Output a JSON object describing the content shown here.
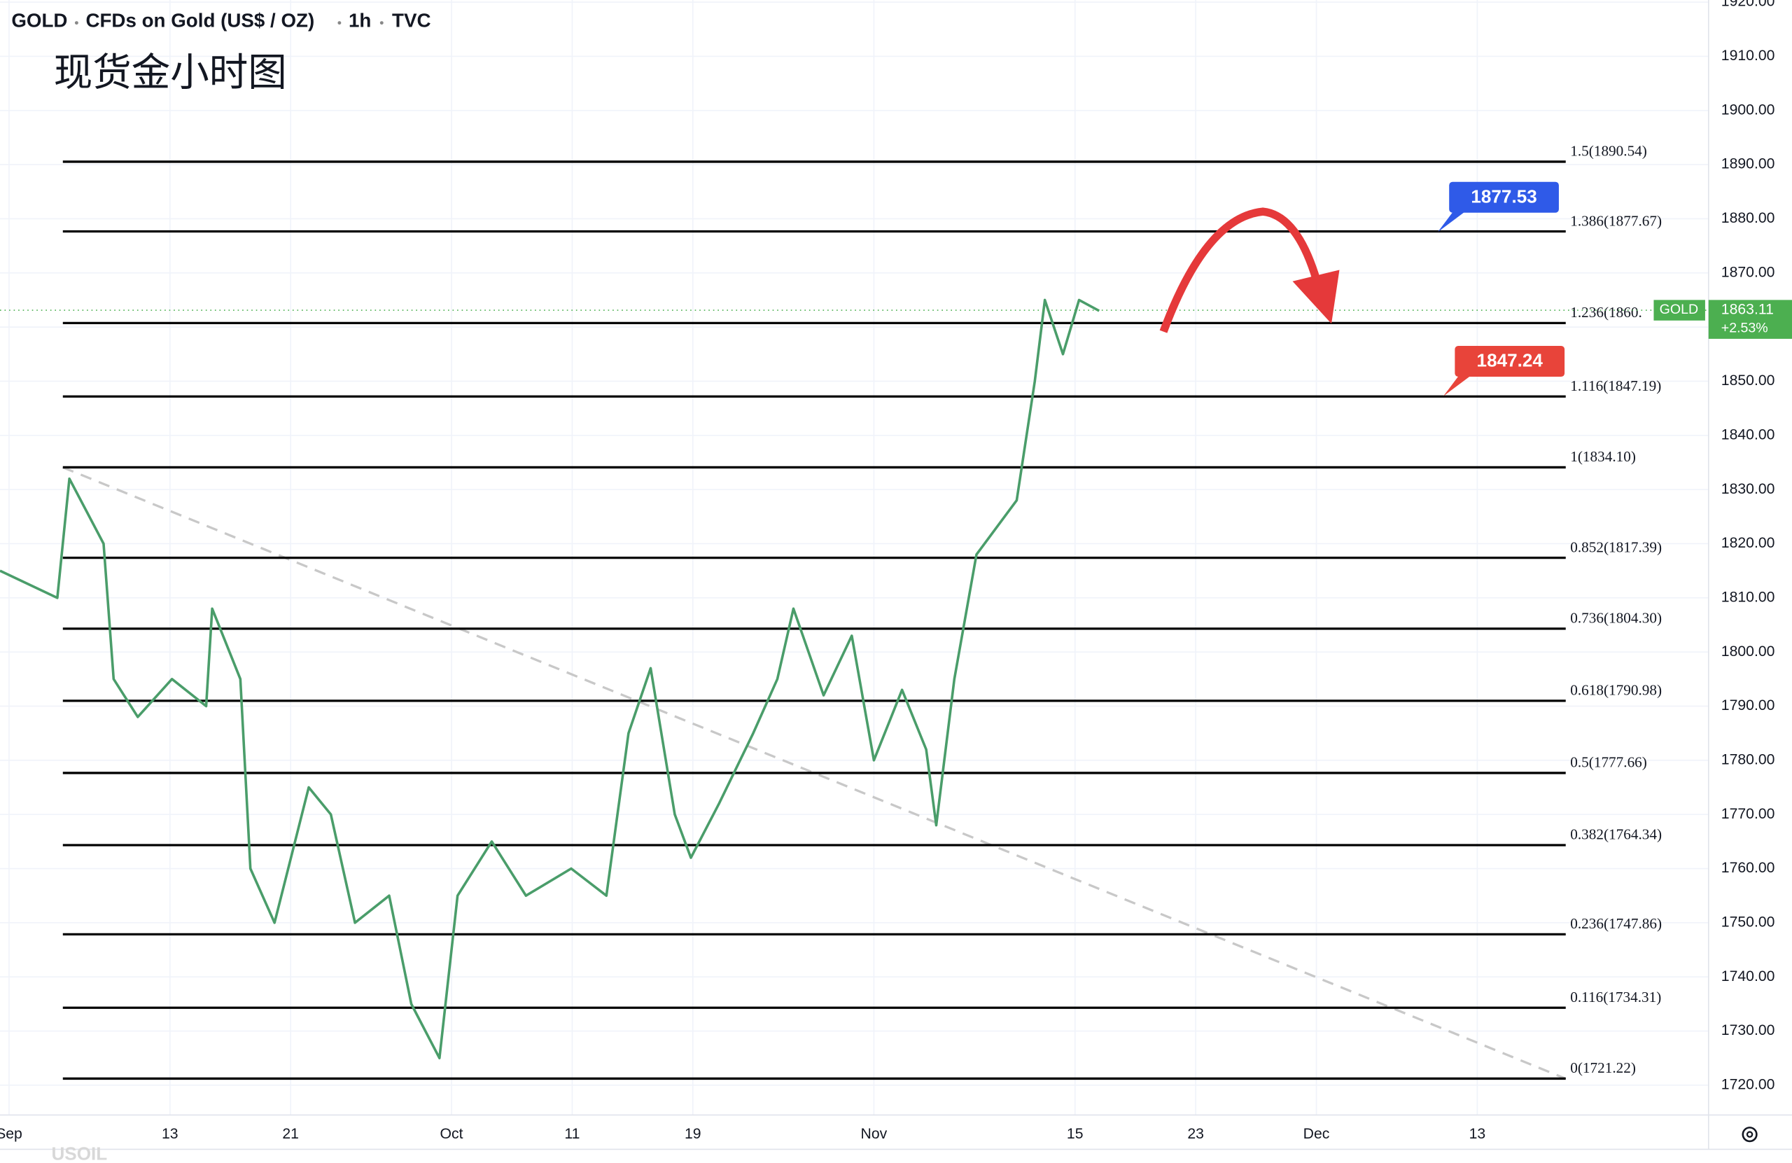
{
  "chart_data": {
    "type": "line",
    "symbol": "GOLD",
    "instrument": "CFDs on Gold (US$ / OZ)",
    "interval": "1h",
    "source": "TVC",
    "title": "现货金小时图",
    "footer_symbol": "USOIL",
    "grid": true,
    "xlim": [
      -0.45,
      84.5
    ],
    "ylim": [
      1714.5,
      1920.4
    ],
    "xticks": [
      {
        "value": 0,
        "label": "Sep"
      },
      {
        "value": 8,
        "label": "13"
      },
      {
        "value": 14,
        "label": "21"
      },
      {
        "value": 22,
        "label": "Oct"
      },
      {
        "value": 28,
        "label": "11"
      },
      {
        "value": 34,
        "label": "19"
      },
      {
        "value": 43,
        "label": "Nov"
      },
      {
        "value": 53,
        "label": "15"
      },
      {
        "value": 59,
        "label": "23"
      },
      {
        "value": 65,
        "label": "Dec"
      },
      {
        "value": 73,
        "label": "13"
      }
    ],
    "yticks": [
      {
        "value": 1720,
        "label": "1720.00"
      },
      {
        "value": 1730,
        "label": "1730.00"
      },
      {
        "value": 1740,
        "label": "1740.00"
      },
      {
        "value": 1750,
        "label": "1750.00"
      },
      {
        "value": 1760,
        "label": "1760.00"
      },
      {
        "value": 1770,
        "label": "1770.00"
      },
      {
        "value": 1780,
        "label": "1780.00"
      },
      {
        "value": 1790,
        "label": "1790.00"
      },
      {
        "value": 1800,
        "label": "1800.00"
      },
      {
        "value": 1810,
        "label": "1810.00"
      },
      {
        "value": 1820,
        "label": "1820.00"
      },
      {
        "value": 1830,
        "label": "1830.00"
      },
      {
        "value": 1840,
        "label": "1840.00"
      },
      {
        "value": 1850,
        "label": "1850.00"
      },
      {
        "value": 1860,
        "label": "1860.00"
      },
      {
        "value": 1870,
        "label": "1870.00"
      },
      {
        "value": 1880,
        "label": "1880.00"
      },
      {
        "value": 1890,
        "label": "1890.00"
      },
      {
        "value": 1900,
        "label": "1900.00"
      },
      {
        "value": 1910,
        "label": "1910.00"
      },
      {
        "value": 1920,
        "label": "1920.00"
      }
    ],
    "series": [
      {
        "color": "#4a9d6a",
        "x": [
          -0.45,
          2.4,
          3,
          4.7,
          5.2,
          6.4,
          8.1,
          9.8,
          10.1,
          11.5,
          12,
          13.2,
          14.9,
          16,
          17.2,
          18.9,
          20,
          21.4,
          22.3,
          24,
          25.7,
          27.95,
          29.7,
          30.8,
          31.9,
          33.1,
          33.9,
          35.3,
          37,
          38.2,
          39,
          40.5,
          41.9,
          43,
          44.4,
          45.6,
          46.1,
          47,
          48.1,
          50.1,
          51,
          51.5,
          52.4,
          53.2,
          54.2
        ],
        "values": [
          1815,
          1810,
          1832,
          1820,
          1795,
          1788,
          1795,
          1790,
          1808,
          1795,
          1760,
          1750,
          1775,
          1770,
          1750,
          1755,
          1735,
          1725,
          1755,
          1765,
          1755,
          1760,
          1755,
          1785,
          1797,
          1770,
          1762,
          1772,
          1785,
          1795,
          1808,
          1792,
          1803,
          1780,
          1793,
          1782,
          1768,
          1795,
          1818,
          1828,
          1850,
          1865,
          1855,
          1865,
          1863
        ]
      }
    ],
    "trend_line": {
      "x": [
        2.67,
        77.4
      ],
      "values": [
        1834.1,
        1721.2
      ]
    },
    "fib_levels": [
      {
        "value": 1890.54,
        "label": "1.5(1890.54)"
      },
      {
        "value": 1877.67,
        "label": "1.386(1877.67)"
      },
      {
        "value": 1860.74,
        "label": "1.236(1860."
      },
      {
        "value": 1847.19,
        "label": "1.116(1847.19)"
      },
      {
        "value": 1834.1,
        "label": "1(1834.10)"
      },
      {
        "value": 1817.39,
        "label": "0.852(1817.39)"
      },
      {
        "value": 1804.3,
        "label": "0.736(1804.30)"
      },
      {
        "value": 1790.98,
        "label": "0.618(1790.98)"
      },
      {
        "value": 1777.66,
        "label": "0.5(1777.66)"
      },
      {
        "value": 1764.34,
        "label": "0.382(1764.34)"
      },
      {
        "value": 1747.86,
        "label": "0.236(1747.86)"
      },
      {
        "value": 1734.31,
        "label": "0.116(1734.31)"
      },
      {
        "value": 1721.22,
        "label": "0(1721.22)"
      }
    ],
    "price_badges": [
      {
        "value": 1877.53,
        "color": "#2f5ae8"
      },
      {
        "value": 1847.24,
        "color": "#e8443a"
      }
    ],
    "last_price": {
      "value": 1863.11,
      "change": "+2.53%",
      "color": "#4caf50"
    }
  }
}
